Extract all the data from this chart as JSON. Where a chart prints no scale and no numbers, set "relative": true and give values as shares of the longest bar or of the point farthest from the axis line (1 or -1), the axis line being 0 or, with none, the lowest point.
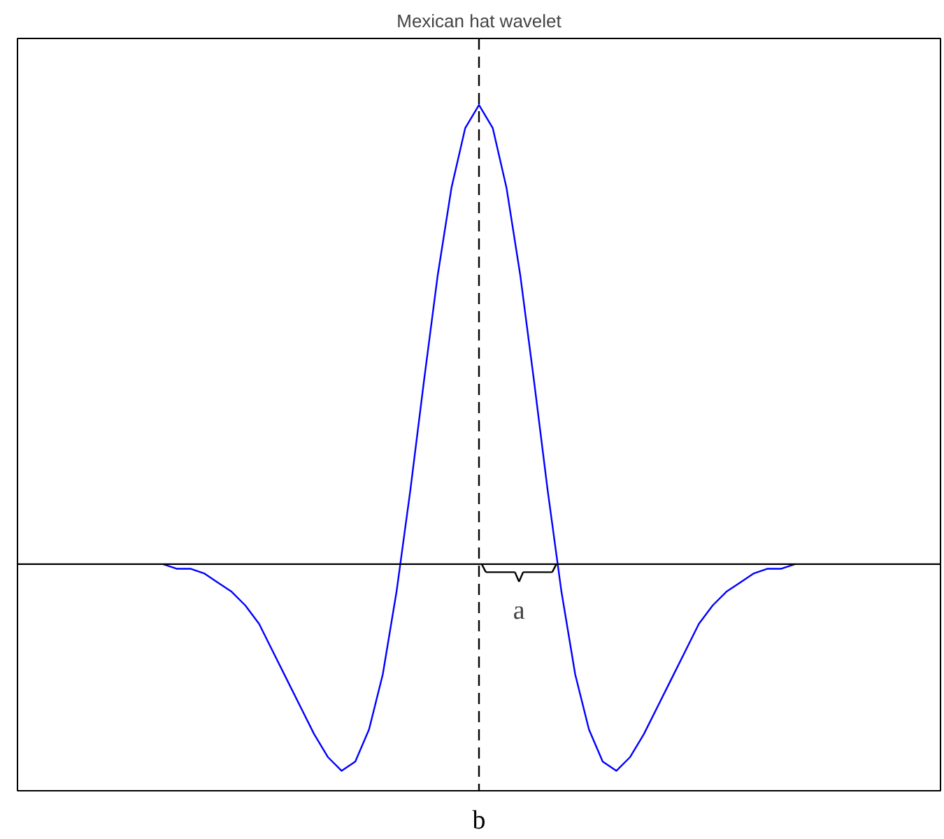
{
  "chart_data": {
    "type": "line",
    "title": "Mexican hat wavelet",
    "relative": true,
    "categories": [
      null,
      null,
      null,
      null,
      null,
      null,
      null,
      null,
      null,
      null,
      null,
      null,
      null,
      null,
      null,
      null,
      null,
      null,
      null,
      null,
      null,
      null,
      null,
      null,
      null,
      null,
      null,
      null,
      null,
      null,
      null,
      null,
      null,
      null,
      null,
      null,
      null,
      null,
      null,
      null,
      null,
      null,
      null,
      null,
      null,
      null,
      null
    ],
    "series": [
      {
        "color": "#0000ff",
        "values": [
          0,
          -0.01,
          -0.01,
          -0.02,
          -0.04,
          -0.06,
          -0.09,
          -0.13,
          -0.19,
          -0.25,
          -0.31,
          -0.37,
          -0.42,
          -0.45,
          -0.43,
          -0.36,
          -0.24,
          -0.06,
          0.16,
          0.4,
          0.63,
          0.82,
          0.95,
          1,
          0.95,
          0.82,
          0.63,
          0.4,
          0.16,
          -0.06,
          -0.24,
          -0.36,
          -0.43,
          -0.45,
          -0.42,
          -0.37,
          -0.31,
          -0.25,
          -0.19,
          -0.13,
          -0.09,
          -0.06,
          -0.04,
          -0.02,
          -0.01,
          -0.01,
          0
        ]
      }
    ],
    "ref_lines": [
      {
        "axis": "x",
        "label": "b",
        "color": "#000000",
        "line_style": "dashed"
      },
      {
        "axis": "y",
        "value": 0,
        "color": "#000000",
        "line_style": "solid"
      }
    ],
    "annotations": [
      "a"
    ],
    "grid": false
  }
}
